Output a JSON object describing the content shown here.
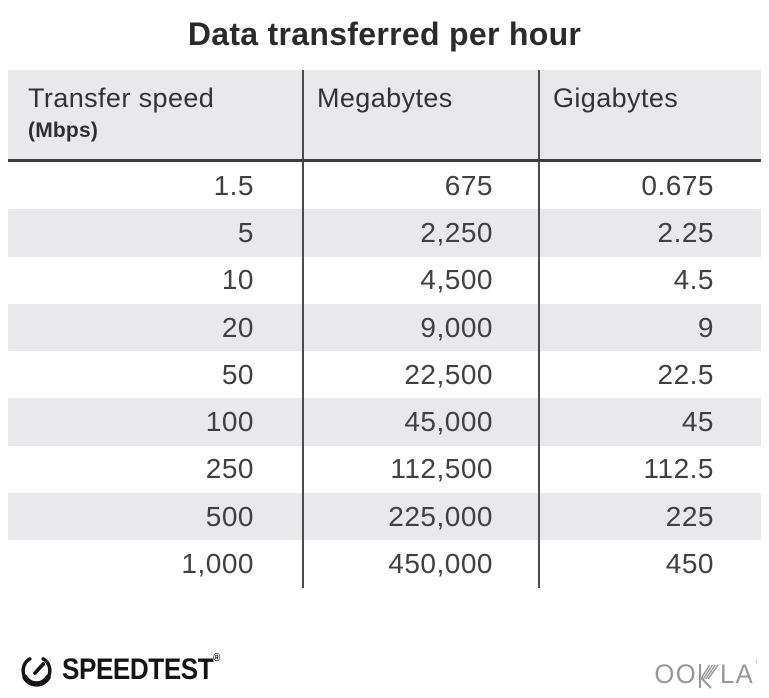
{
  "title": "Data transferred per hour",
  "table": {
    "columns": [
      {
        "label": "Transfer speed",
        "sublabel": "(Mbps)"
      },
      {
        "label": "Megabytes"
      },
      {
        "label": "Gigabytes"
      }
    ],
    "rows": [
      [
        "1.5",
        "675",
        "0.675"
      ],
      [
        "5",
        "2,250",
        "2.25"
      ],
      [
        "10",
        "4,500",
        "4.5"
      ],
      [
        "20",
        "9,000",
        "9"
      ],
      [
        "50",
        "22,500",
        "22.5"
      ],
      [
        "100",
        "45,000",
        "45"
      ],
      [
        "250",
        "112,500",
        "112.5"
      ],
      [
        "500",
        "225,000",
        "225"
      ],
      [
        "1,000",
        "450,000",
        "450"
      ]
    ]
  },
  "footer": {
    "speedtest_label": "SPEEDTEST",
    "speedtest_mark": "®",
    "ookla_left": "OO",
    "ookla_right": "LA",
    "ookla_mark": "’"
  },
  "icons": {
    "speedtest_gauge": "circular-gauge-with-needle",
    "ookla_k": "stylized-multi-stroke-letter-k"
  },
  "colors": {
    "background": "#ffffff",
    "stripe_gray": "#e9e8ea",
    "header_border": "#3e3d40",
    "column_divider": "#4c4b4d",
    "title_text": "#2b2a2c",
    "cell_text": "#413f43",
    "speedtest_black": "#141414",
    "ookla_gray": "#98979a"
  },
  "chart_data": {
    "type": "table",
    "title": "Data transferred per hour",
    "columns": [
      "Transfer speed (Mbps)",
      "Megabytes",
      "Gigabytes"
    ],
    "rows": [
      [
        1.5,
        675,
        0.675
      ],
      [
        5,
        2250,
        2.25
      ],
      [
        10,
        4500,
        4.5
      ],
      [
        20,
        9000,
        9
      ],
      [
        50,
        22500,
        22.5
      ],
      [
        100,
        45000,
        45
      ],
      [
        250,
        112500,
        112.5
      ],
      [
        500,
        225000,
        225
      ],
      [
        1000,
        450000,
        450
      ]
    ],
    "layout": {
      "striped_rows": true,
      "column_dividers": true,
      "value_alignment": "right"
    }
  }
}
